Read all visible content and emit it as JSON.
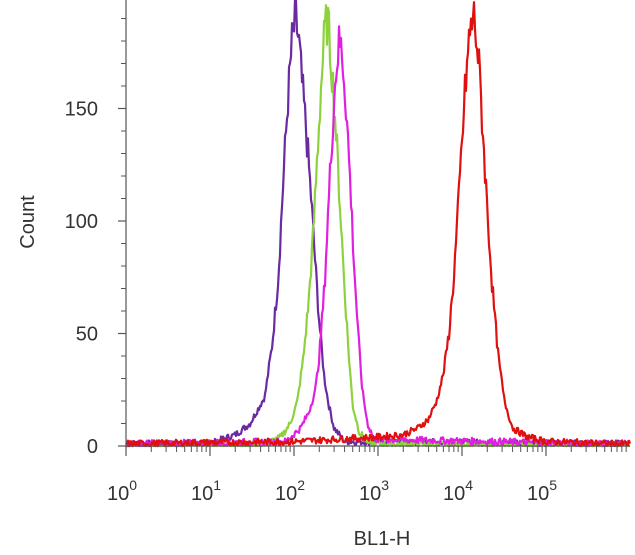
{
  "chart_data": {
    "type": "line",
    "title": "",
    "xlabel": "BL1-H",
    "ylabel": "Count",
    "x_scale": "log10",
    "xlim": [
      1,
      600000
    ],
    "ylim": [
      0,
      195
    ],
    "x_ticks": [
      {
        "value": 1,
        "base": "10",
        "exp": "0"
      },
      {
        "value": 10,
        "base": "10",
        "exp": "1"
      },
      {
        "value": 100,
        "base": "10",
        "exp": "2"
      },
      {
        "value": 1000,
        "base": "10",
        "exp": "3"
      },
      {
        "value": 10000,
        "base": "10",
        "exp": "4"
      },
      {
        "value": 100000,
        "base": "10",
        "exp": "5"
      }
    ],
    "y_ticks": [
      0,
      50,
      100,
      150
    ],
    "grid": false,
    "legend": "none",
    "series": [
      {
        "color": "#6a2aa0",
        "x": [
          1,
          10,
          20,
          30,
          45,
          55,
          65,
          75,
          85,
          95,
          105,
          115,
          125,
          140,
          160,
          180,
          200,
          230,
          260,
          300,
          400,
          600000
        ],
        "y": [
          1,
          1,
          5,
          10,
          22,
          45,
          75,
          120,
          155,
          180,
          190,
          178,
          160,
          140,
          110,
          80,
          55,
          30,
          18,
          8,
          2,
          1
        ]
      },
      {
        "color": "#8dd23c",
        "x": [
          1,
          40,
          70,
          90,
          110,
          130,
          150,
          170,
          190,
          210,
          230,
          250,
          280,
          310,
          350,
          400,
          450,
          500,
          600,
          800,
          600000
        ],
        "y": [
          0,
          0,
          4,
          10,
          20,
          40,
          65,
          95,
          130,
          160,
          182,
          190,
          170,
          145,
          110,
          70,
          40,
          18,
          6,
          1,
          0
        ]
      },
      {
        "color": "#e020e0",
        "x": [
          1,
          80,
          120,
          150,
          180,
          200,
          230,
          260,
          290,
          320,
          350,
          380,
          420,
          470,
          520,
          580,
          650,
          750,
          900,
          600000
        ],
        "y": [
          1,
          2,
          8,
          15,
          25,
          40,
          70,
          110,
          145,
          170,
          180,
          172,
          150,
          115,
          80,
          50,
          25,
          10,
          3,
          1
        ]
      },
      {
        "color": "#e01010",
        "x": [
          1,
          100,
          1000,
          2000,
          3000,
          4000,
          5000,
          6000,
          7000,
          8000,
          9000,
          10000,
          11000,
          12000,
          13000,
          14000,
          15000,
          16500,
          18000,
          20000,
          23000,
          27000,
          32000,
          40000,
          60000,
          100000,
          600000
        ],
        "y": [
          1,
          2,
          4,
          5,
          8,
          12,
          20,
          32,
          50,
          75,
          105,
          135,
          160,
          178,
          188,
          190,
          180,
          160,
          135,
          105,
          70,
          40,
          20,
          8,
          4,
          2,
          1
        ]
      }
    ]
  }
}
